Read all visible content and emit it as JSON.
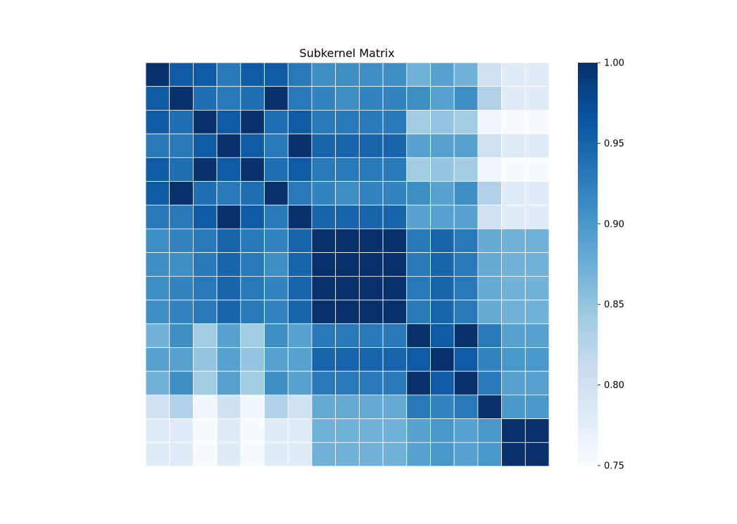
{
  "chart_data": {
    "type": "heatmap",
    "title": "Subkernel Matrix",
    "xlabel": "",
    "ylabel": "",
    "colormap": "Blues",
    "colormap_stops": [
      "#f7fbff",
      "#deebf7",
      "#c6dbef",
      "#9ecae1",
      "#6baed6",
      "#4292c6",
      "#2171b5",
      "#08519c",
      "#08306b"
    ],
    "grid_line_color": "#ffffff",
    "vmin": 0.75,
    "vmax": 1.0,
    "colorbar_ticks": [
      "1.00",
      "0.95",
      "0.90",
      "0.85",
      "0.80",
      "0.75"
    ],
    "values": [
      [
        1.0,
        0.96,
        0.96,
        0.93,
        0.96,
        0.96,
        0.93,
        0.91,
        0.91,
        0.91,
        0.91,
        0.87,
        0.89,
        0.87,
        0.8,
        0.78,
        0.78
      ],
      [
        0.96,
        1.0,
        0.94,
        0.93,
        0.94,
        1.0,
        0.93,
        0.92,
        0.91,
        0.92,
        0.92,
        0.91,
        0.89,
        0.91,
        0.83,
        0.78,
        0.78
      ],
      [
        0.96,
        0.94,
        1.0,
        0.96,
        1.0,
        0.94,
        0.96,
        0.93,
        0.93,
        0.93,
        0.93,
        0.84,
        0.85,
        0.84,
        0.76,
        0.75,
        0.75
      ],
      [
        0.93,
        0.93,
        0.96,
        1.0,
        0.96,
        0.93,
        1.0,
        0.95,
        0.95,
        0.95,
        0.95,
        0.89,
        0.89,
        0.89,
        0.8,
        0.78,
        0.78
      ],
      [
        0.96,
        0.94,
        1.0,
        0.96,
        1.0,
        0.94,
        0.96,
        0.93,
        0.93,
        0.93,
        0.93,
        0.84,
        0.85,
        0.84,
        0.76,
        0.75,
        0.75
      ],
      [
        0.96,
        1.0,
        0.94,
        0.93,
        0.94,
        1.0,
        0.93,
        0.92,
        0.91,
        0.92,
        0.92,
        0.91,
        0.89,
        0.91,
        0.83,
        0.78,
        0.78
      ],
      [
        0.93,
        0.93,
        0.96,
        1.0,
        0.96,
        0.93,
        1.0,
        0.95,
        0.95,
        0.95,
        0.95,
        0.89,
        0.89,
        0.89,
        0.8,
        0.78,
        0.78
      ],
      [
        0.91,
        0.92,
        0.93,
        0.95,
        0.93,
        0.92,
        0.95,
        1.0,
        1.0,
        1.0,
        1.0,
        0.93,
        0.95,
        0.93,
        0.88,
        0.87,
        0.87
      ],
      [
        0.91,
        0.91,
        0.93,
        0.95,
        0.93,
        0.91,
        0.95,
        1.0,
        1.0,
        1.0,
        1.0,
        0.93,
        0.95,
        0.93,
        0.88,
        0.87,
        0.87
      ],
      [
        0.91,
        0.92,
        0.93,
        0.95,
        0.93,
        0.92,
        0.95,
        1.0,
        1.0,
        1.0,
        1.0,
        0.93,
        0.95,
        0.93,
        0.88,
        0.87,
        0.87
      ],
      [
        0.91,
        0.92,
        0.93,
        0.95,
        0.93,
        0.92,
        0.95,
        1.0,
        1.0,
        1.0,
        1.0,
        0.93,
        0.95,
        0.93,
        0.88,
        0.87,
        0.87
      ],
      [
        0.87,
        0.91,
        0.84,
        0.89,
        0.84,
        0.91,
        0.89,
        0.93,
        0.93,
        0.93,
        0.93,
        1.0,
        0.96,
        1.0,
        0.93,
        0.89,
        0.89
      ],
      [
        0.89,
        0.89,
        0.85,
        0.89,
        0.85,
        0.89,
        0.89,
        0.95,
        0.95,
        0.95,
        0.95,
        0.96,
        1.0,
        0.96,
        0.92,
        0.9,
        0.9
      ],
      [
        0.87,
        0.91,
        0.84,
        0.89,
        0.84,
        0.91,
        0.89,
        0.93,
        0.93,
        0.93,
        0.93,
        1.0,
        0.96,
        1.0,
        0.93,
        0.89,
        0.89
      ],
      [
        0.8,
        0.83,
        0.76,
        0.8,
        0.76,
        0.83,
        0.8,
        0.88,
        0.88,
        0.88,
        0.88,
        0.93,
        0.92,
        0.93,
        1.0,
        0.9,
        0.9
      ],
      [
        0.78,
        0.78,
        0.75,
        0.78,
        0.75,
        0.78,
        0.78,
        0.87,
        0.87,
        0.87,
        0.87,
        0.89,
        0.9,
        0.89,
        0.9,
        1.0,
        1.0
      ],
      [
        0.78,
        0.78,
        0.75,
        0.78,
        0.75,
        0.78,
        0.78,
        0.87,
        0.87,
        0.87,
        0.87,
        0.89,
        0.9,
        0.89,
        0.9,
        1.0,
        1.0
      ]
    ]
  }
}
